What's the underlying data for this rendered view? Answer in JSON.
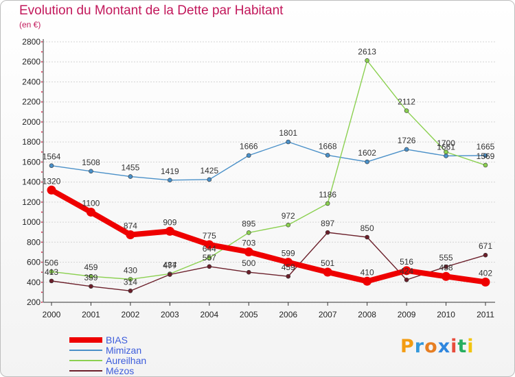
{
  "header": {
    "title": "Evolution du Montant de la Dette par Habitant",
    "subtitle": "(en €)"
  },
  "logo": {
    "text": "Proxiti",
    "letters": [
      "P",
      "r",
      "o",
      "x",
      "i",
      "t",
      "i"
    ],
    "colors": [
      "#f39c12",
      "#3498db",
      "#e67e22",
      "#2e86de",
      "#e74c3c",
      "#27ae60",
      "#f1c40f"
    ]
  },
  "chart_data": {
    "type": "line",
    "title": "Evolution du Montant de la Dette par Habitant",
    "subtitle": "(en €)",
    "xlabel": "",
    "ylabel": "",
    "categories": [
      "2000",
      "2001",
      "2002",
      "2003",
      "2004",
      "2005",
      "2006",
      "2007",
      "2008",
      "2009",
      "2010",
      "2011"
    ],
    "ylim": [
      200,
      2800
    ],
    "yticks": [
      200,
      400,
      600,
      800,
      1000,
      1200,
      1400,
      1600,
      1800,
      2000,
      2200,
      2400,
      2600,
      2800
    ],
    "grid": "horizontal",
    "legend_position": "bottom-left",
    "series": [
      {
        "name": "BIAS",
        "color": "#ee0000",
        "values": [
          1320,
          1100,
          874,
          909,
          775,
          703,
          599,
          501,
          410,
          516,
          458,
          402
        ]
      },
      {
        "name": "Mimizan",
        "color": "#4a90c8",
        "values": [
          1564,
          1508,
          1455,
          1419,
          1425,
          1666,
          1801,
          1668,
          1602,
          1726,
          1661,
          1665
        ]
      },
      {
        "name": "Aureilhan",
        "color": "#8bd050",
        "values": [
          506,
          459,
          430,
          484,
          644,
          895,
          972,
          1186,
          2613,
          2112,
          1700,
          1569
        ]
      },
      {
        "name": "Mézos",
        "color": "#6b1f2a",
        "values": [
          413,
          359,
          314,
          477,
          557,
          500,
          459,
          897,
          850,
          424,
          555,
          671
        ]
      }
    ]
  }
}
